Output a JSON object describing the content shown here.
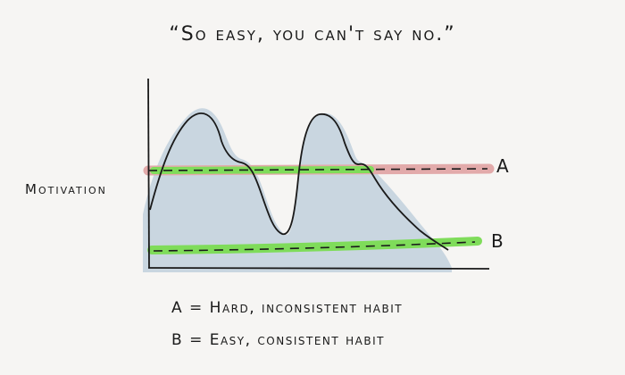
{
  "title": "“So easy, you can't say no.”",
  "y_axis_label": "Motivation",
  "lines": {
    "a_label": "A",
    "b_label": "B"
  },
  "legend": {
    "a": "A = Hard, inconsistent habit",
    "b": "B = Easy, consistent habit"
  },
  "colors": {
    "area_fill": "#c9d6e0",
    "line_a_highlight": "#e2aaaa",
    "line_b_highlight": "#7fdc5a",
    "ink": "#1a1a1a"
  }
}
